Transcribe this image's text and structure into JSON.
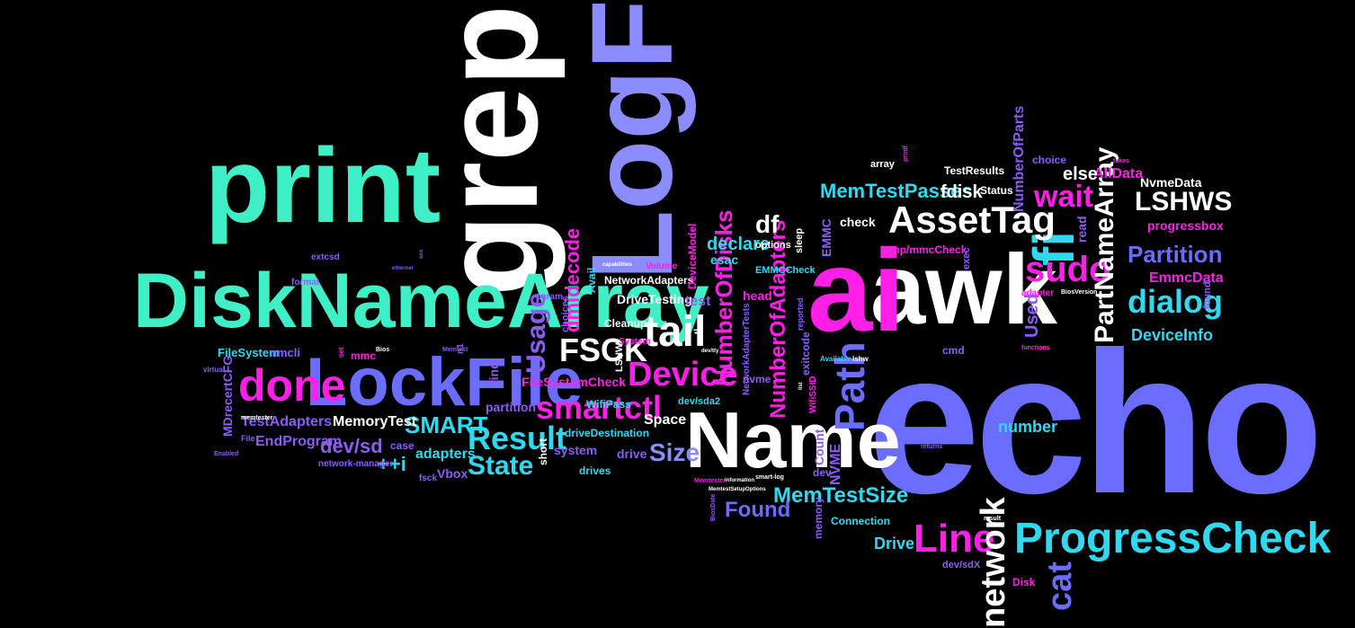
{
  "words": {
    "print": "print",
    "grep": "grep",
    "LogFile": "LogFile",
    "DiskNameArray": "DiskNameArray",
    "LockFile": "LockFile",
    "done": "done",
    "echo": "echo",
    "awk": "awk",
    "ai": "ai",
    "fi": "fi",
    "Name": "Name",
    "tail": "tail",
    "FSCK": "FSCK",
    "AssetTag": "AssetTag",
    "sudo": "sudo",
    "wait": "wait",
    "LSHWS": "LSHWS",
    "ProgressCheck": "ProgressCheck",
    "Line": "Line",
    "network": "network",
    "cat": "cat",
    "Path": "Path",
    "Device": "Device",
    "smartctl": "smartctl",
    "Result": "Result",
    "State": "State",
    "SMART": "SMART",
    "Usage": "Usage",
    "dmidecode": "dmidecode",
    "NumberOfDisks": "NumberOfDisks",
    "NumberOfAdapters": "NumberOfAdapters",
    "PartNameArray": "PartNameArray",
    "dialog": "dialog",
    "Partition": "Partition",
    "MemTestPasses": "MemTestPasses",
    "fdisk": "fdisk",
    "MemTestSize": "MemTestSize",
    "Size": "Size",
    "Found": "Found",
    "df": "df",
    "declare": "declare",
    "esac": "esac",
    "DeviceInfo": "DeviceInfo",
    "EmmcData": "EmmcData",
    "NvmeData": "NvmeData",
    "AllData": "AllData",
    "else": "else",
    "number": "number",
    "Drive": "Drive",
    "dev_sd": "dev/sd",
    "adapters": "adapters",
    "plusplus_i": "++i",
    "Vbox": "Vbox",
    "TestAdapters": "TestAdapters",
    "EndProgram": "EndProgram",
    "MemoryTest": "MemoryTest",
    "FileSystem": "FileSystem",
    "nmcli": "nmcli",
    "mmc": "mmc",
    "MDrecertCFG": "MDrecertCFG",
    "FileSystemCheck": "FileSystemCheck",
    "partition": "partition",
    "find": "find",
    "Space": "Space",
    "drive": "drive",
    "drives": "drives",
    "system": "system",
    "driveDestination": "driveDestination",
    "WifiPass": "WifiPass",
    "NetworkAdapters": "NetworkAdapters",
    "DriveTesting": "DriveTesting",
    "Cleanup": "Cleanup",
    "System": "System",
    "test": "test",
    "head": "head",
    "EMMCCheck": "EMMCCheck",
    "EMMC": "EMMC",
    "check": "check",
    "options": "options",
    "sleep": "sleep",
    "Used": "Used",
    "read": "read",
    "progressbox": "progressbox",
    "TestResults": "TestResults",
    "Status": "Status",
    "array": "array",
    "choice": "choice",
    "NumberOfParts": "NumberOfParts",
    "NVME": "NVME",
    "Count": "Count",
    "dev": "dev",
    "cmd": "cmd",
    "tmp_mmcCheck": "tmp/mmcCheck",
    "exec": "exec",
    "adapter": "adapter",
    "found": "found",
    "Connection": "Connection",
    "memory": "memory",
    "Disk": "Disk",
    "dev_sdX": "dev/sdX",
    "short": "short",
    "case": "case",
    "fsck": "fsck",
    "network_manager": "network-manager",
    "nvme": "nvme",
    "dev_sda2": "dev/sda2",
    "LSHW": "LSHW",
    "choices": "choices",
    "param": "param",
    "Avail": "Avail",
    "Volume": "Volume",
    "DeviceModel": "DeviceModel",
    "extcsd": "extcsd",
    "format": "format",
    "virtual": "virtual",
    "File": "File",
    "Enabled": "Enabled",
    "n1": "n1",
    "set": "set",
    "Bios": "Bios",
    "Memtest": "Memtest",
    "memtester": "memtester",
    "exitcode": "exitcode",
    "reported": "reported",
    "WifiSSID": "WifiSSID",
    "Available": "Available",
    "lshw": "lshw",
    "printf": "printf",
    "takes": "takes",
    "functions": "functions",
    "BiosVersion": "BiosVersion",
    "returns": "returns",
    "result": "result",
    "BiosDate": "BiosDate",
    "Memtester": "Memtester",
    "MemtestSetupOptions": "MemtestSetupOptions",
    "smart_log": "smart-log",
    "information": "information",
    "NetworkAdapterTests": "NetworkAdapterTests",
    "capabilities": "capabilities",
    "ethernet": "ethernet",
    "dev_tty": "dev/tty",
    "tl": "tl",
    "ocs": "ocs",
    "list": "list"
  },
  "colors": {
    "background": "#000000",
    "mint": "#3ff0c6",
    "cyan": "#2fd9f0",
    "blue": "#6a6dff",
    "white": "#ffffff",
    "magenta": "#ff1fe6",
    "purple": "#8b5cf6"
  }
}
